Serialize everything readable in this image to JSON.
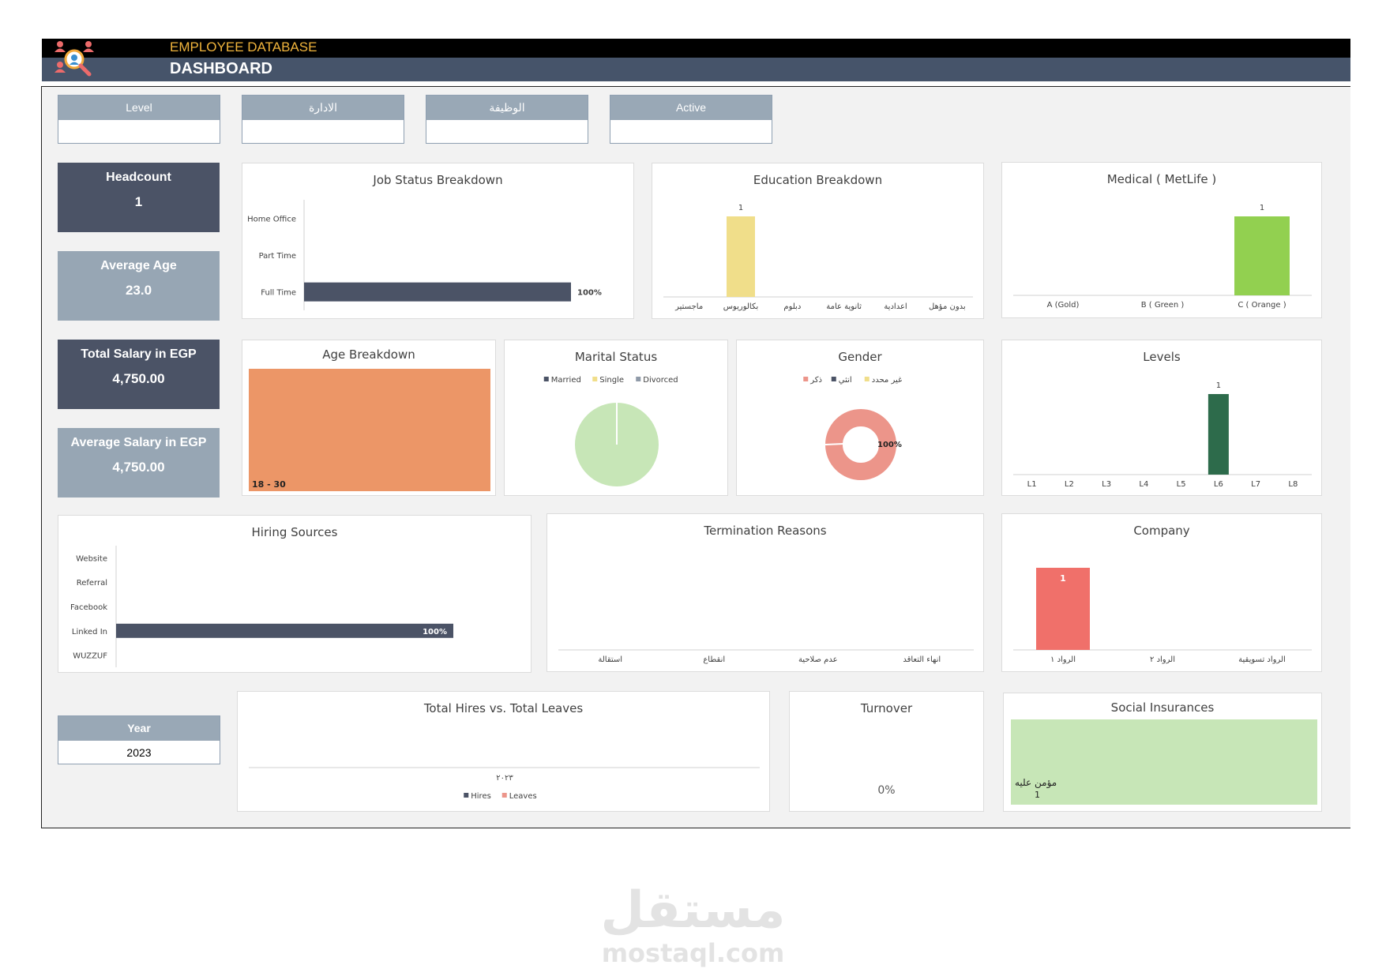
{
  "header": {
    "subtitle": "EMPLOYEE DATABASE",
    "title": "DASHBOARD"
  },
  "slicers": [
    {
      "label": "Level",
      "value": ""
    },
    {
      "label": "الادارة",
      "value": ""
    },
    {
      "label": "الوظيفة",
      "value": ""
    },
    {
      "label": "Active",
      "value": ""
    }
  ],
  "kpis": {
    "headcount": {
      "label": "Headcount",
      "value": "1"
    },
    "avg_age": {
      "label": "Average Age",
      "value": "23.0"
    },
    "total_salary": {
      "label": "Total Salary in EGP",
      "value": "4,750.00"
    },
    "avg_salary": {
      "label": "Average Salary in EGP",
      "value": "4,750.00"
    }
  },
  "year_slicer": {
    "label": "Year",
    "value": "2023"
  },
  "turnover": {
    "title": "Turnover",
    "value": "0%"
  },
  "colors": {
    "dark": "#4b5366",
    "yellow": "#f0de8a",
    "green_light": "#92d050",
    "green_dark": "#2d6b4b",
    "orange": "#ec9667",
    "pale_green": "#c7e6b7",
    "salmon": "#ec958a",
    "red": "#f0706a"
  },
  "chart_data": [
    {
      "id": "job_status",
      "type": "bar",
      "orientation": "horizontal",
      "title": "Job Status Breakdown",
      "categories": [
        "Home Office",
        "Part Time",
        "Full Time"
      ],
      "values": [
        0,
        0,
        100
      ],
      "value_labels": [
        "",
        "",
        "100%"
      ]
    },
    {
      "id": "education",
      "type": "bar",
      "title": "Education Breakdown",
      "categories": [
        "ماجستير",
        "بكالوريوس",
        "دبلوم",
        "ثانوية عامة",
        "اعدادية",
        "بدون مؤهل"
      ],
      "values": [
        0,
        1,
        0,
        0,
        0,
        0
      ]
    },
    {
      "id": "medical",
      "type": "bar",
      "title": "Medical ( MetLife )",
      "categories": [
        "A (Gold)",
        "B ( Green )",
        "C ( Orange )"
      ],
      "values": [
        0,
        0,
        1
      ]
    },
    {
      "id": "age",
      "type": "bar",
      "title": "Age Breakdown",
      "categories": [
        "18 - 30"
      ],
      "values": [
        1
      ]
    },
    {
      "id": "marital",
      "type": "pie",
      "title": "Marital Status",
      "legend": [
        "Married",
        "Single",
        "Divorced"
      ],
      "values": [
        0,
        1,
        0
      ]
    },
    {
      "id": "gender",
      "type": "pie",
      "title": "Gender",
      "legend": [
        "ذكر",
        "انثي",
        "غير محدد"
      ],
      "values": [
        1,
        0,
        0
      ],
      "value_label": "100%"
    },
    {
      "id": "levels",
      "type": "bar",
      "title": "Levels",
      "categories": [
        "L1",
        "L2",
        "L3",
        "L4",
        "L5",
        "L6",
        "L7",
        "L8"
      ],
      "values": [
        0,
        0,
        0,
        0,
        0,
        1,
        0,
        0
      ]
    },
    {
      "id": "hiring",
      "type": "bar",
      "orientation": "horizontal",
      "title": "Hiring Sources",
      "categories": [
        "Website",
        "Referral",
        "Facebook",
        "Linked In",
        "WUZZUF"
      ],
      "values": [
        0,
        0,
        0,
        100,
        0
      ],
      "value_labels": [
        "",
        "",
        "",
        "100%",
        ""
      ]
    },
    {
      "id": "termination",
      "type": "bar",
      "title": "Termination Reasons",
      "categories": [
        "استقالة",
        "انقطاع",
        "عدم صلاحية",
        "انهاء التعاقد"
      ],
      "values": [
        0,
        0,
        0,
        0
      ]
    },
    {
      "id": "company",
      "type": "bar",
      "title": "Company",
      "categories": [
        "الرواد ١",
        "الرواد ٢",
        "الرواد تسويقية"
      ],
      "values": [
        1,
        0,
        0
      ]
    },
    {
      "id": "hires_leaves",
      "type": "bar",
      "title": "Total Hires vs. Total Leaves",
      "categories": [
        "٢٠٢٣"
      ],
      "series": [
        {
          "name": "Hires",
          "values": [
            0
          ]
        },
        {
          "name": "Leaves",
          "values": [
            0
          ]
        }
      ]
    },
    {
      "id": "social",
      "type": "bar",
      "title": "Social Insurances",
      "categories": [
        "مؤمن عليه"
      ],
      "values": [
        1
      ]
    }
  ],
  "watermark": {
    "arabic": "مستقل",
    "latin": "mostaql.com"
  }
}
